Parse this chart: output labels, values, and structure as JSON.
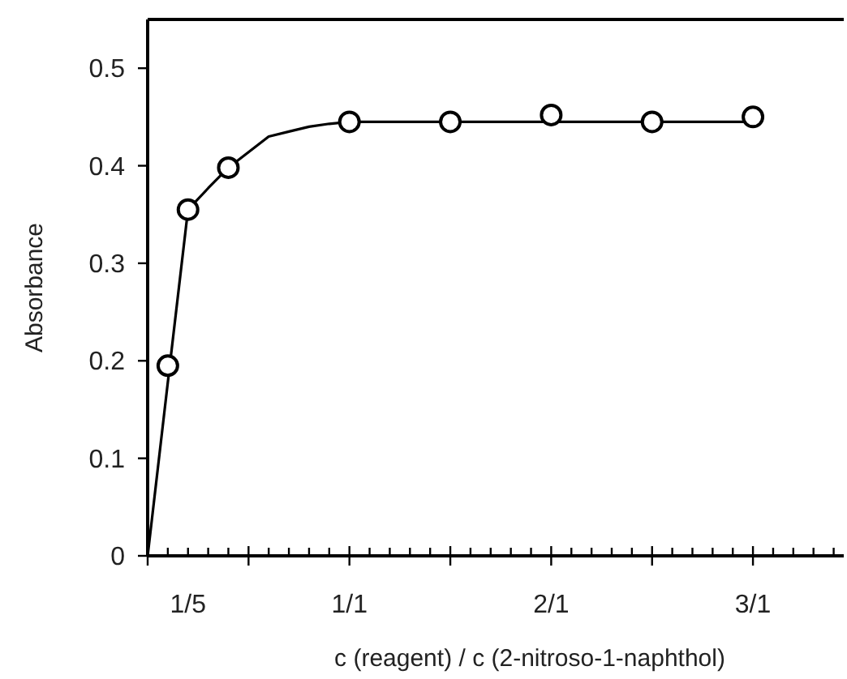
{
  "chart_data": {
    "type": "line",
    "xlabel": "c (reagent) / c (2-nitroso-1-naphthol)",
    "ylabel": "Absorbance",
    "ylim": [
      0,
      0.55
    ],
    "categories": [
      null,
      null,
      "1/5",
      null,
      null,
      null,
      null,
      null,
      null,
      null,
      "1/1",
      null,
      null,
      null,
      null,
      null,
      null,
      null,
      null,
      null,
      "2/1",
      null,
      null,
      null,
      null,
      null,
      null,
      null,
      null,
      null,
      "3/1",
      null,
      null,
      null,
      null
    ],
    "yticks": [
      0,
      0.1,
      0.2,
      0.3,
      0.4,
      0.5
    ],
    "series": [
      {
        "color": "#000000",
        "marker": "none",
        "values": [
          0,
          0.178,
          0.355,
          0.377,
          0.398,
          0.414,
          0.43,
          0.435,
          0.44,
          0.443,
          0.445,
          0.445,
          0.445,
          0.445,
          0.445,
          0.445,
          0.445,
          0.445,
          0.445,
          0.445,
          0.445,
          0.445,
          0.445,
          0.445,
          0.445,
          0.445,
          0.445,
          0.445,
          0.445,
          0.445,
          0.445,
          null,
          null,
          null,
          null
        ]
      },
      {
        "type": "scatter",
        "color": "#000000",
        "marker": "circle",
        "values": [
          null,
          0.195,
          0.355,
          null,
          0.398,
          null,
          null,
          null,
          null,
          null,
          0.445,
          null,
          null,
          null,
          null,
          0.445,
          null,
          null,
          null,
          null,
          0.452,
          null,
          null,
          null,
          null,
          0.445,
          null,
          null,
          null,
          null,
          0.45,
          null,
          null,
          null,
          null
        ]
      }
    ]
  }
}
